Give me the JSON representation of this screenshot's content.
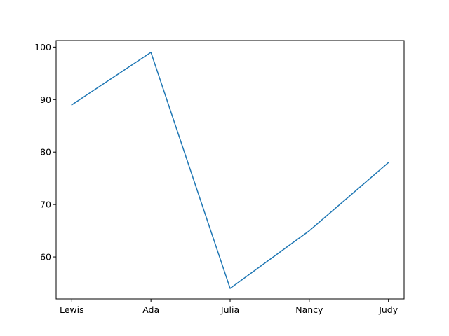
{
  "chart_data": {
    "type": "line",
    "categories": [
      "Lewis",
      "Ada",
      "Julia",
      "Nancy",
      "Judy"
    ],
    "series": [
      {
        "values": [
          89,
          99,
          54,
          65,
          78
        ],
        "color": "#1f77b4"
      }
    ],
    "ylim": [
      52,
      101.25
    ],
    "yticks": [
      60,
      70,
      80,
      90,
      100
    ],
    "grid": false
  }
}
